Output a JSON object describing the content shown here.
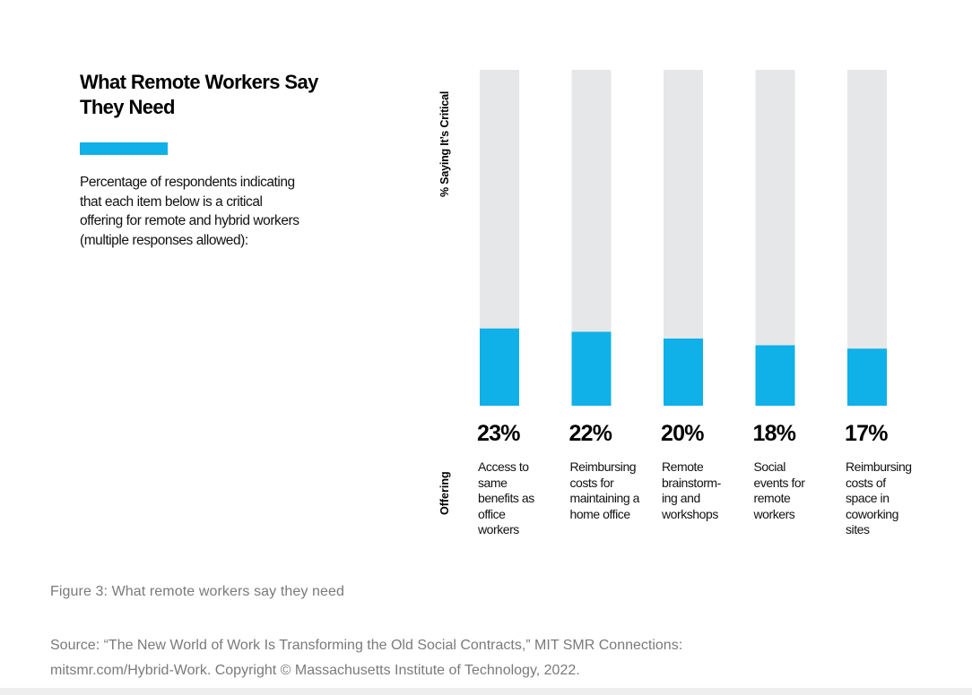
{
  "header": {
    "title": "What Remote Workers Say\nThey Need",
    "subtitle": "Percentage of respondents indicating\nthat each item below is a critical\noffering for remote and hybrid workers\n(multiple responses allowed):"
  },
  "colors": {
    "accent": "#10b0e8",
    "track": "#e6e7e8"
  },
  "chart_data": {
    "type": "bar",
    "ylabel": "% Saying It’s Critical",
    "row_label": "Offering",
    "categories": [
      "Access to\nsame\nbenefits as\noffice\nworkers",
      "Reimbursing\ncosts for\nmaintaining a\nhome office",
      "Remote\nbrainstorm-\ning and\nworkshops",
      "Social\nevents for\nremote\nworkers",
      "Reimbursing\ncosts of\nspace in\ncoworking\nsites"
    ],
    "values": [
      23,
      22,
      20,
      18,
      17
    ],
    "value_labels": [
      "23%",
      "22%",
      "20%",
      "18%",
      "17%"
    ],
    "ylim": [
      0,
      100
    ],
    "grid": false,
    "legend": "none"
  },
  "footer": {
    "caption": "Figure 3: What remote workers say they need",
    "source": "Source: “The New World of Work Is Transforming the Old Social Contracts,” MIT SMR Connections:\nmitsmr.com/Hybrid-Work. Copyright © Massachusetts Institute of Technology, 2022."
  }
}
